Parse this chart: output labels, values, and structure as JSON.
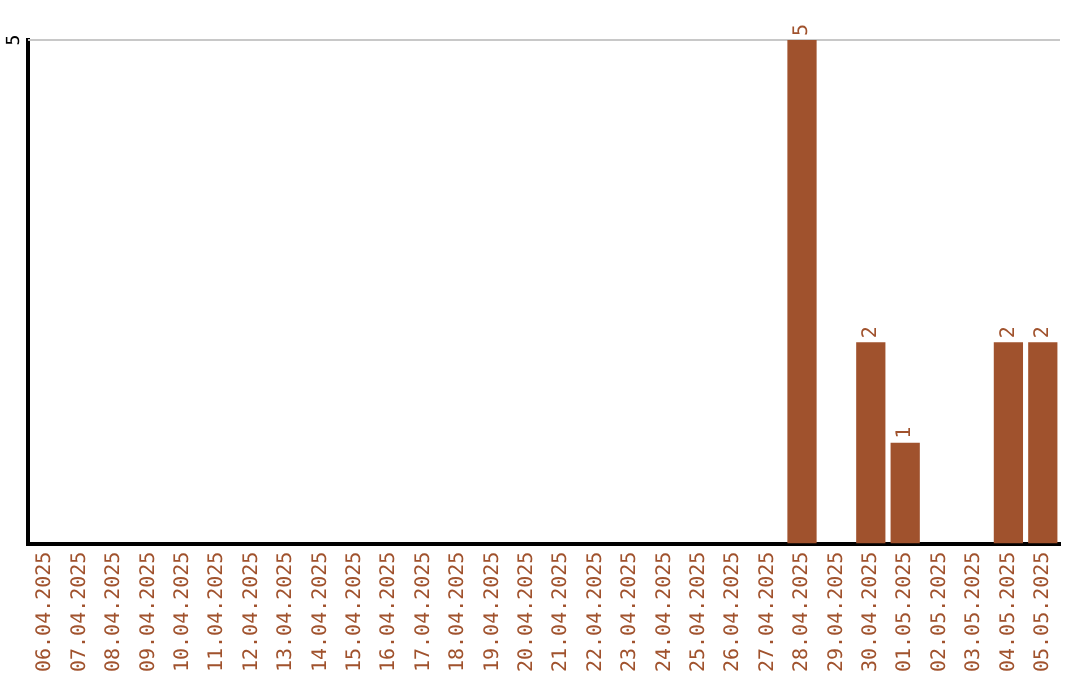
{
  "chart_data": {
    "type": "bar",
    "categories": [
      "06.04.2025",
      "07.04.2025",
      "08.04.2025",
      "09.04.2025",
      "10.04.2025",
      "11.04.2025",
      "12.04.2025",
      "13.04.2025",
      "14.04.2025",
      "15.04.2025",
      "16.04.2025",
      "17.04.2025",
      "18.04.2025",
      "19.04.2025",
      "20.04.2025",
      "21.04.2025",
      "22.04.2025",
      "23.04.2025",
      "24.04.2025",
      "25.04.2025",
      "26.04.2025",
      "27.04.2025",
      "28.04.2025",
      "29.04.2025",
      "30.04.2025",
      "01.05.2025",
      "02.05.2025",
      "03.05.2025",
      "04.05.2025",
      "05.05.2025"
    ],
    "values": [
      null,
      null,
      null,
      null,
      null,
      null,
      null,
      null,
      null,
      null,
      null,
      null,
      null,
      null,
      null,
      null,
      null,
      null,
      null,
      null,
      null,
      null,
      5,
      null,
      2,
      1,
      null,
      null,
      2,
      2
    ],
    "value_labels": [
      null,
      null,
      null,
      null,
      null,
      null,
      null,
      null,
      null,
      null,
      null,
      null,
      null,
      null,
      null,
      null,
      null,
      null,
      null,
      null,
      null,
      null,
      "5",
      null,
      "2",
      "1",
      null,
      null,
      "2",
      "2"
    ],
    "ylim": [
      0,
      5
    ],
    "color": "#a0522d",
    "ref_lines": [
      {
        "axis": "y",
        "value": 5,
        "label": "5",
        "color": "#c8c8c8"
      }
    ],
    "legend": false
  }
}
